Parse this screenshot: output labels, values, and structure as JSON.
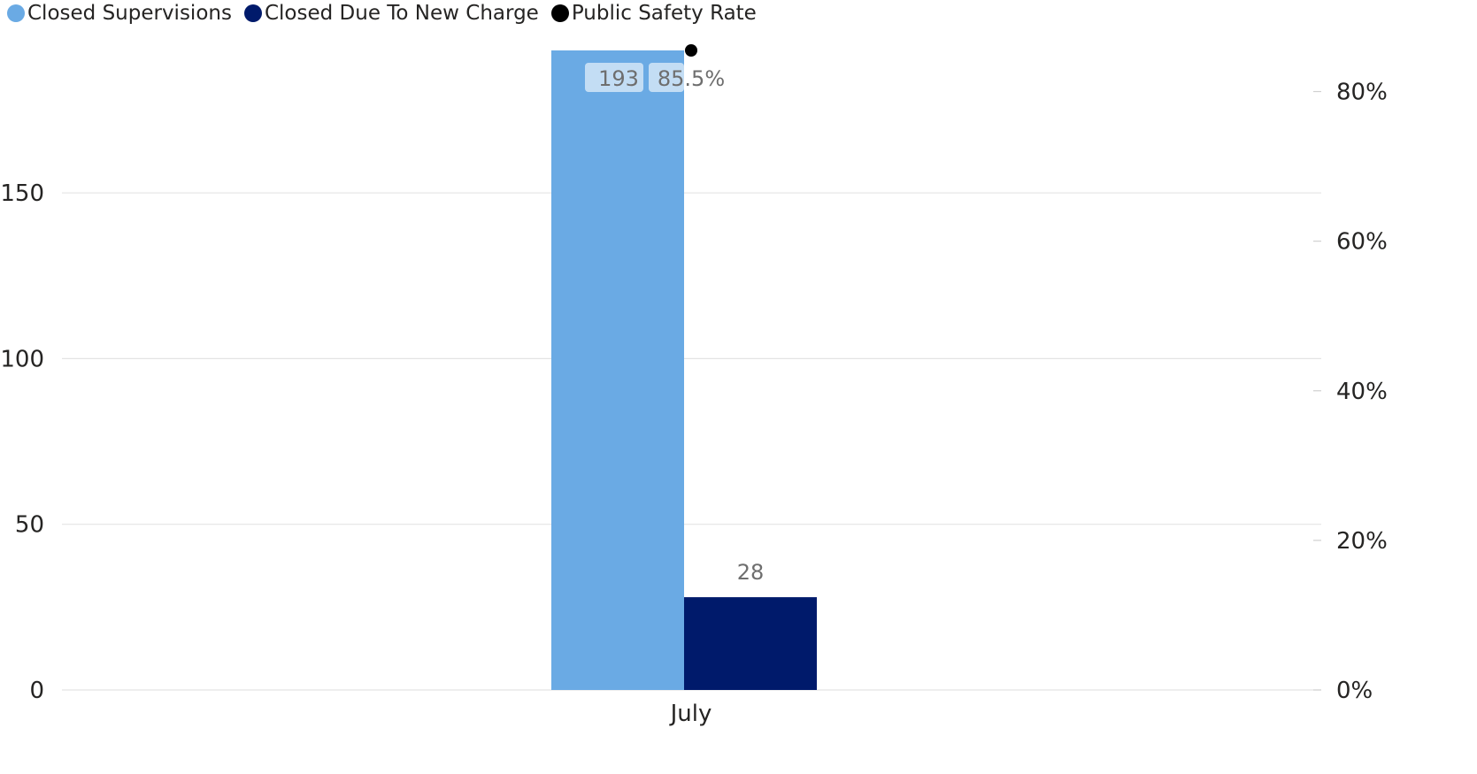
{
  "chart_data": {
    "type": "bar",
    "categories": [
      "July"
    ],
    "series": [
      {
        "name": "Closed Supervisions",
        "values": [
          193
        ],
        "color": "#6AAAE4",
        "axis": "left",
        "kind": "bar",
        "labels": [
          "193"
        ]
      },
      {
        "name": "Closed Due To New Charge",
        "values": [
          28
        ],
        "color": "#001A6B",
        "axis": "left",
        "kind": "bar",
        "labels": [
          "28"
        ]
      },
      {
        "name": "Public Safety Rate",
        "values": [
          85.5
        ],
        "color": "#000000",
        "axis": "right",
        "kind": "point",
        "labels": [
          "85.5%"
        ]
      }
    ],
    "y_left": {
      "ticks": [
        0,
        50,
        100,
        150
      ],
      "tick_labels": [
        "0",
        "50",
        "100",
        "150"
      ],
      "range": [
        0,
        193
      ]
    },
    "y_right": {
      "ticks": [
        0,
        20,
        40,
        60,
        80
      ],
      "tick_labels": [
        "0%",
        "20%",
        "40%",
        "60%",
        "80%"
      ],
      "range": [
        0,
        85.5
      ]
    },
    "grid": true,
    "legend_position": "top-left"
  }
}
